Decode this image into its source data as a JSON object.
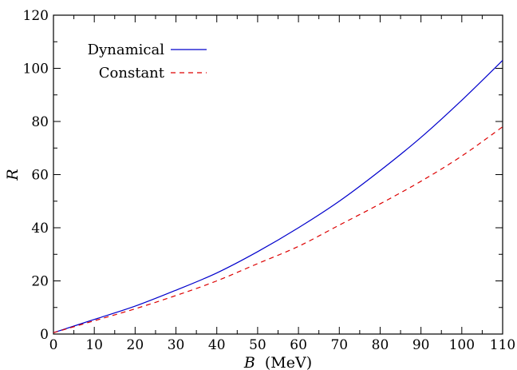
{
  "chart_data": {
    "type": "line",
    "title": "",
    "xlabel": {
      "symbol": "B",
      "unit": "(MeV)"
    },
    "ylabel": "R",
    "xlim": [
      0,
      110
    ],
    "ylim": [
      0,
      120
    ],
    "xticks": [
      0,
      10,
      20,
      30,
      40,
      50,
      60,
      70,
      80,
      90,
      100,
      110
    ],
    "yticks": [
      0,
      20,
      40,
      60,
      80,
      100,
      120
    ],
    "x_minor_step": 5,
    "y_minor_step": 10,
    "grid": false,
    "legend": "top-left",
    "series": [
      {
        "name": "Dynamical",
        "color": "#0000cc",
        "style": "solid",
        "x": [
          0,
          10,
          20,
          30,
          40,
          50,
          60,
          70,
          80,
          90,
          100,
          110
        ],
        "y": [
          0.5,
          5.5,
          10.5,
          16.5,
          23,
          31,
          40,
          50,
          61.5,
          74,
          88,
          103
        ]
      },
      {
        "name": "Constant",
        "color": "#dd0000",
        "style": "dashed",
        "x": [
          0,
          10,
          20,
          30,
          40,
          50,
          60,
          70,
          80,
          90,
          100,
          110
        ],
        "y": [
          0.5,
          5,
          9.5,
          14.5,
          20,
          26.5,
          33,
          41,
          49,
          57.5,
          67,
          78
        ]
      }
    ]
  }
}
